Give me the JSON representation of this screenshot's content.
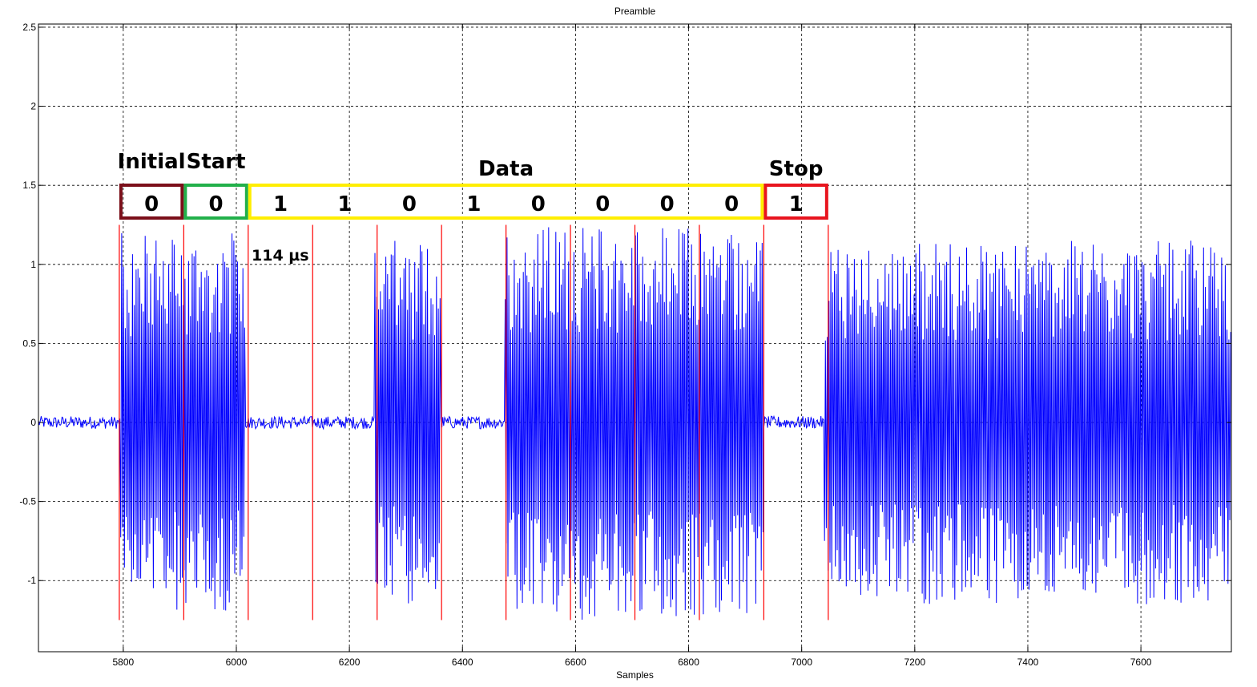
{
  "chart_data": {
    "type": "line",
    "title": "Preamble",
    "xlabel": "Samples",
    "ylabel": "",
    "xlim": [
      5650,
      7760
    ],
    "ylim": [
      -1.45,
      2.52
    ],
    "xticks": [
      5800,
      6000,
      6200,
      6400,
      6600,
      6800,
      7000,
      7200,
      7400,
      7600
    ],
    "yticks": [
      -1,
      -0.5,
      0,
      0.5,
      1,
      1.5,
      2,
      2.5
    ],
    "ytick_labels": [
      "-1",
      "-0.5",
      "0",
      "0.5",
      "1",
      "1.5",
      "2",
      "2.5"
    ],
    "grid": true,
    "series": [
      {
        "color": "#0000ff",
        "description": "blue waveform; bursts of high-amplitude oscillation separated by near-zero noise",
        "bursts": [
          {
            "x_start": 5795,
            "x_end": 6015,
            "amp": 1.2
          },
          {
            "x_start": 6245,
            "x_end": 6362,
            "amp": 1.15
          },
          {
            "x_start": 6475,
            "x_end": 6932,
            "amp": 1.25
          },
          {
            "x_start": 7040,
            "x_end": 7760,
            "amp": 1.15
          }
        ],
        "noise_amp": 0.04
      }
    ],
    "bit_boundaries": [
      5793,
      5907,
      6021,
      6135,
      6249,
      6363,
      6477,
      6591,
      6705,
      6819,
      6933,
      7047
    ],
    "boundary_color": "#ff0000",
    "boundary_range": [
      -1.25,
      1.25
    ]
  },
  "annotations": {
    "segments": [
      {
        "label": "Initial",
        "color": "#7b0f1a",
        "bits": [
          "0"
        ],
        "x_start": 5793,
        "x_end": 5907
      },
      {
        "label": "Start",
        "color": "#22b04a",
        "bits": [
          "0"
        ],
        "x_start": 5907,
        "x_end": 6021
      },
      {
        "label": "Data",
        "color": "#ffee00",
        "bits": [
          "1",
          "1",
          "0",
          "1",
          "0",
          "0",
          "0",
          "0"
        ],
        "x_start": 6021,
        "x_end": 6933
      },
      {
        "label": "Stop",
        "color": "#e8141e",
        "bits": [
          "1"
        ],
        "x_start": 6933,
        "x_end": 7047
      }
    ],
    "bit_width_label": "114 µs"
  }
}
